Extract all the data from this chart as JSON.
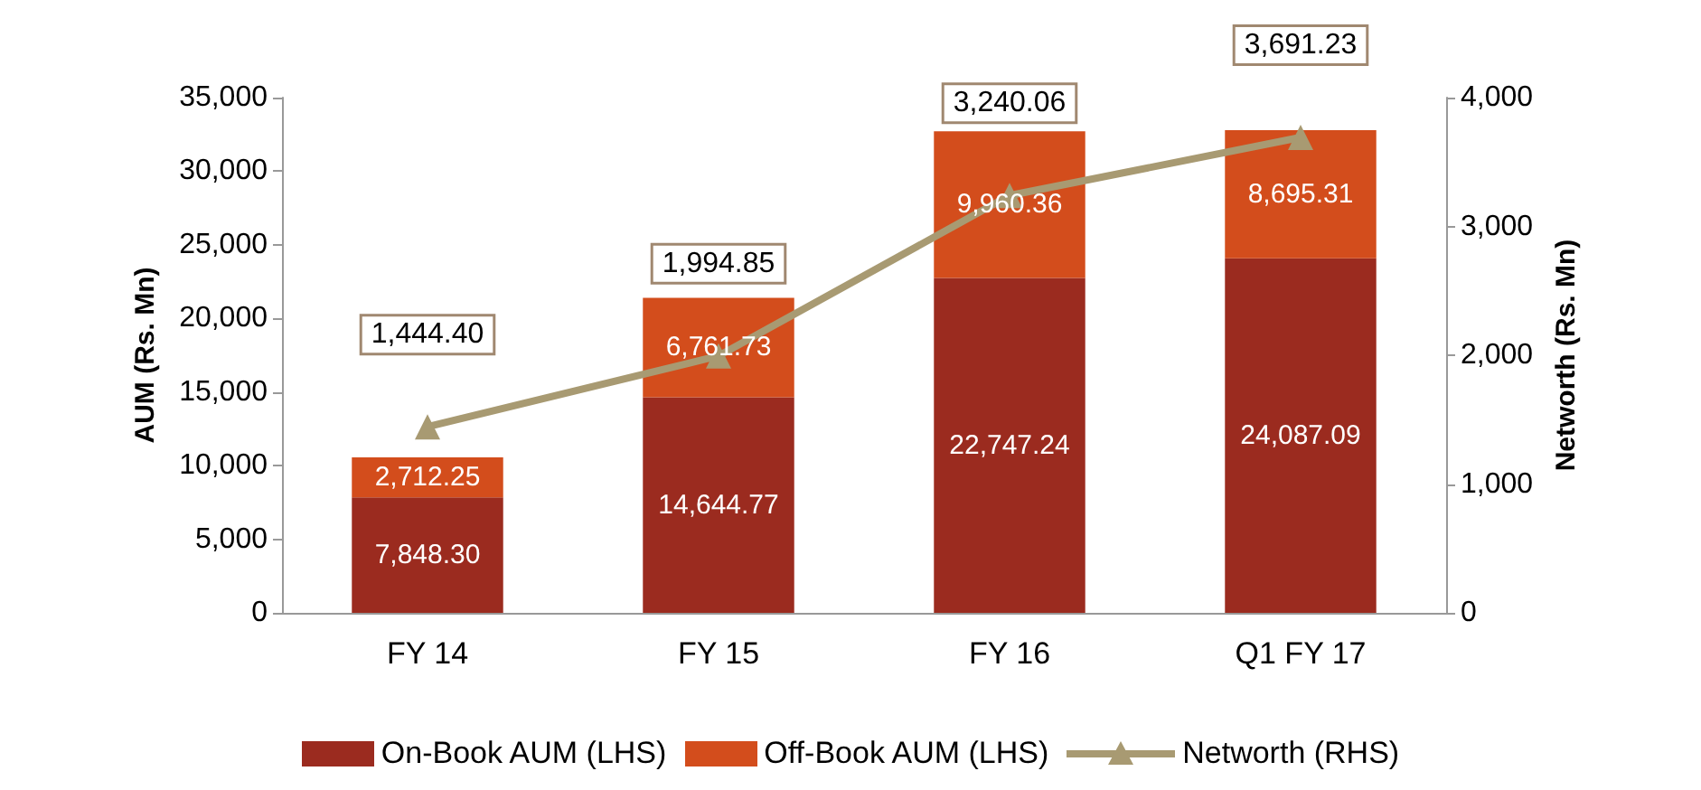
{
  "chart_data": {
    "type": "bar",
    "stacked": true,
    "categories": [
      "FY 14",
      "FY 15",
      "FY 16",
      "Q1 FY 17"
    ],
    "ylabel": "AUM (Rs. Mn)",
    "y2label": "Networth (Rs. Mn)",
    "ylim": [
      0,
      35000
    ],
    "yticks": [
      0,
      {
        "value": 5000,
        "label": "5,000"
      },
      {
        "value": 10000,
        "label": "10,000"
      },
      {
        "value": 15000,
        "label": "15,000"
      },
      {
        "value": 20000,
        "label": "20,000"
      },
      {
        "value": 25000,
        "label": "25,000"
      },
      {
        "value": 30000,
        "label": "30,000"
      },
      {
        "value": 35000,
        "label": "35,000"
      }
    ],
    "y2lim": [
      0,
      4000
    ],
    "y2ticks": [
      0,
      {
        "value": 1000,
        "label": "1,000"
      },
      {
        "value": 2000,
        "label": "2,000"
      },
      {
        "value": 3000,
        "label": "3,000"
      },
      {
        "value": 4000,
        "label": "4,000"
      }
    ],
    "grid": false,
    "legend": "bottom",
    "series": [
      {
        "name": "On-Book AUM (LHS)",
        "color": "#9b2b1f",
        "values": [
          7848.3,
          14644.77,
          22747.24,
          24087.09
        ],
        "value_labels": [
          "7,848.30",
          "14,644.77",
          "22,747.24",
          "24,087.09"
        ]
      },
      {
        "name": "Off-Book AUM (LHS)",
        "color": "#d34d1c",
        "values": [
          2712.25,
          6761.73,
          9960.36,
          8695.31
        ],
        "value_labels": [
          "2,712.25",
          "6,761.73",
          "9,960.36",
          "8,695.31"
        ]
      },
      {
        "name": "Networth (RHS)",
        "type": "line",
        "axis": "y2",
        "marker": "triangle",
        "color": "#a89a72",
        "values": [
          1444.4,
          1994.85,
          3240.06,
          3691.23
        ],
        "value_labels": [
          "1,444.40",
          "1,994.85",
          "3,240.06",
          "3,691.23"
        ]
      }
    ]
  }
}
